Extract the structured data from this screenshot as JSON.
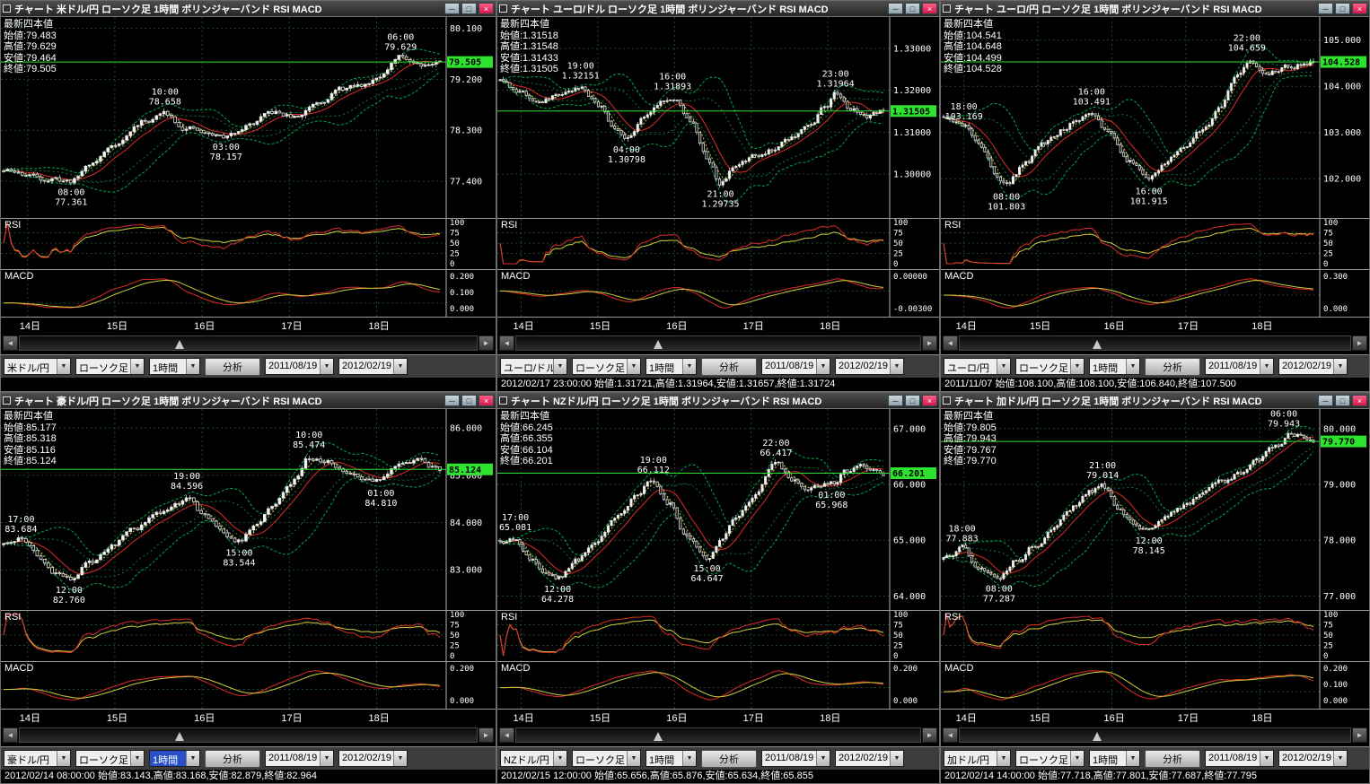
{
  "common": {
    "quote_header": "最新四本値",
    "rsi_label": "RSI",
    "macd_label": "MACD",
    "rsi_ticks": [
      "100",
      "75",
      "50",
      "25",
      "0"
    ],
    "dates": [
      "14日",
      "15日",
      "16日",
      "17日",
      "18日"
    ],
    "window_buttons": {
      "minimize": "─",
      "maximize": "□",
      "close": "×"
    },
    "scrollbar": {
      "left": "◄",
      "right": "►"
    },
    "combo_arrow": "▼",
    "toolbar": {
      "candle_type": "ローソク足",
      "interval": "1時間",
      "analyze": "分析",
      "date_from": "2011/08/19",
      "date_to": "2012/02/19"
    },
    "colors": {
      "candle": "#f0f0f0",
      "band": "#00a850",
      "band_inner": "#0a7a40",
      "ma_fast": "#dd2a2a",
      "ma_slow": "#cfcf3a",
      "current": "#2ee32e",
      "grid": "#1d4a2c",
      "axis": "#b0b0b0"
    }
  },
  "panels": [
    {
      "pair": "米ドル/円",
      "title": "チャート 米ドル/円 ローソク足 1時間 ボリンジャーバンド RSI MACD",
      "quote_lines": [
        "始値:79.483",
        "高値:79.629",
        "安値:79.464",
        "終値:79.505"
      ],
      "current": "79.505",
      "current_value": 79.505,
      "y_ticks": [
        "80.100",
        "79.200",
        "78.300",
        "77.400"
      ],
      "y_range": [
        76.75,
        80.3
      ],
      "macd_ticks": [
        "0.200",
        "0.100",
        "0.000"
      ],
      "annotations": [
        {
          "t": 0.155,
          "price": 77.361,
          "time": "08:00",
          "value": "77.361",
          "pos": "below"
        },
        {
          "t": 0.37,
          "price": 78.658,
          "time": "10:00",
          "value": "78.658",
          "pos": "above"
        },
        {
          "t": 0.51,
          "price": 78.157,
          "time": "03:00",
          "value": "78.157",
          "pos": "below"
        },
        {
          "t": 0.91,
          "price": 79.629,
          "time": "06:00",
          "value": "79.629",
          "pos": "above"
        }
      ],
      "price_path": [
        [
          0,
          77.58
        ],
        [
          0.05,
          77.52
        ],
        [
          0.1,
          77.44
        ],
        [
          0.155,
          77.4
        ],
        [
          0.2,
          77.72
        ],
        [
          0.26,
          78.08
        ],
        [
          0.32,
          78.45
        ],
        [
          0.37,
          78.6
        ],
        [
          0.42,
          78.34
        ],
        [
          0.47,
          78.22
        ],
        [
          0.51,
          78.18
        ],
        [
          0.56,
          78.4
        ],
        [
          0.62,
          78.6
        ],
        [
          0.67,
          78.52
        ],
        [
          0.72,
          78.82
        ],
        [
          0.77,
          79.02
        ],
        [
          0.82,
          79.08
        ],
        [
          0.87,
          79.32
        ],
        [
          0.91,
          79.58
        ],
        [
          0.96,
          79.48
        ],
        [
          1,
          79.51
        ]
      ],
      "seed": 11,
      "status": null,
      "interval_selected": false
    },
    {
      "pair": "ユーロ/ドル",
      "title": "チャート ユーロ/ドル ローソク足 1時間 ボリンジャーバンド RSI MACD",
      "quote_lines": [
        "始値:1.31518",
        "高値:1.31548",
        "安値:1.31433",
        "終値:1.31505"
      ],
      "current": "1.31505",
      "current_value": 1.31505,
      "y_ticks": [
        "1.33000",
        "1.32000",
        "1.31000",
        "1.30000"
      ],
      "y_range": [
        1.2895,
        1.3375
      ],
      "macd_ticks": [
        "0.00000",
        "-0.00300"
      ],
      "annotations": [
        {
          "t": 0.21,
          "price": 1.32151,
          "time": "19:00",
          "value": "1.32151",
          "pos": "above"
        },
        {
          "t": 0.33,
          "price": 1.30798,
          "time": "04:00",
          "value": "1.30798",
          "pos": "below"
        },
        {
          "t": 0.45,
          "price": 1.31893,
          "time": "16:00",
          "value": "1.31893",
          "pos": "above"
        },
        {
          "t": 0.575,
          "price": 1.29735,
          "time": "21:00",
          "value": "1.29735",
          "pos": "below"
        },
        {
          "t": 0.875,
          "price": 1.31964,
          "time": "23:00",
          "value": "1.31964",
          "pos": "above"
        }
      ],
      "price_path": [
        [
          0,
          1.3224
        ],
        [
          0.05,
          1.3198
        ],
        [
          0.1,
          1.3178
        ],
        [
          0.15,
          1.3188
        ],
        [
          0.21,
          1.3212
        ],
        [
          0.26,
          1.3158
        ],
        [
          0.3,
          1.3108
        ],
        [
          0.33,
          1.3084
        ],
        [
          0.38,
          1.3138
        ],
        [
          0.43,
          1.3178
        ],
        [
          0.45,
          1.3186
        ],
        [
          0.5,
          1.3128
        ],
        [
          0.54,
          1.3042
        ],
        [
          0.575,
          1.2978
        ],
        [
          0.61,
          1.3012
        ],
        [
          0.66,
          1.3044
        ],
        [
          0.71,
          1.3062
        ],
        [
          0.76,
          1.3088
        ],
        [
          0.81,
          1.3122
        ],
        [
          0.85,
          1.3162
        ],
        [
          0.875,
          1.3192
        ],
        [
          0.92,
          1.3152
        ],
        [
          0.96,
          1.3138
        ],
        [
          1,
          1.315
        ]
      ],
      "seed": 22,
      "status": "2012/02/17 23:00:00 始値:1.31721,高値:1.31964,安値:1.31657,終値:1.31724",
      "interval_selected": false
    },
    {
      "pair": "ユーロ/円",
      "title": "チャート ユーロ/円 ローソク足 1時間 ボリンジャーバンド RSI MACD",
      "quote_lines": [
        "始値:104.541",
        "高値:104.648",
        "安値:104.499",
        "終値:104.528"
      ],
      "current": "104.528",
      "current_value": 104.528,
      "y_ticks": [
        "105.000",
        "104.000",
        "103.000",
        "102.000"
      ],
      "y_range": [
        101.15,
        105.5
      ],
      "macd_ticks": [
        "0.300",
        "0.000"
      ],
      "annotations": [
        {
          "t": 0.055,
          "price": 103.169,
          "time": "18:00",
          "value": "103.169",
          "pos": "above"
        },
        {
          "t": 0.17,
          "price": 101.803,
          "time": "08:00",
          "value": "101.803",
          "pos": "below"
        },
        {
          "t": 0.4,
          "price": 103.491,
          "time": "16:00",
          "value": "103.491",
          "pos": "above"
        },
        {
          "t": 0.555,
          "price": 101.915,
          "time": "16:00",
          "value": "101.915",
          "pos": "below"
        },
        {
          "t": 0.82,
          "price": 104.659,
          "time": "22:00",
          "value": "104.659",
          "pos": "above"
        }
      ],
      "price_path": [
        [
          0,
          103.32
        ],
        [
          0.055,
          103.15
        ],
        [
          0.1,
          102.7
        ],
        [
          0.14,
          102.1
        ],
        [
          0.17,
          101.88
        ],
        [
          0.22,
          102.32
        ],
        [
          0.27,
          102.75
        ],
        [
          0.32,
          103.05
        ],
        [
          0.36,
          103.28
        ],
        [
          0.4,
          103.45
        ],
        [
          0.45,
          102.95
        ],
        [
          0.5,
          102.4
        ],
        [
          0.555,
          101.98
        ],
        [
          0.6,
          102.35
        ],
        [
          0.65,
          102.65
        ],
        [
          0.7,
          103.05
        ],
        [
          0.75,
          103.55
        ],
        [
          0.79,
          104.15
        ],
        [
          0.83,
          104.58
        ],
        [
          0.87,
          104.25
        ],
        [
          0.93,
          104.42
        ],
        [
          1,
          104.53
        ]
      ],
      "seed": 33,
      "status": "2011/11/07 始値:108.100,高値:108.100,安値:106.840,終値:107.500",
      "interval_selected": false
    },
    {
      "pair": "豪ドル/円",
      "title": "チャート 豪ドル/円 ローソク足 1時間 ボリンジャーバンド RSI MACD",
      "quote_lines": [
        "始値:85.177",
        "高値:85.318",
        "安値:85.116",
        "終値:85.124"
      ],
      "current": "85.124",
      "current_value": 85.124,
      "y_ticks": [
        "86.000",
        "85.000",
        "84.000",
        "83.000"
      ],
      "y_range": [
        82.15,
        86.4
      ],
      "macd_ticks": [
        "0.200",
        "0.000"
      ],
      "annotations": [
        {
          "t": 0.04,
          "price": 83.684,
          "time": "17:00",
          "value": "83.684",
          "pos": "above"
        },
        {
          "t": 0.15,
          "price": 82.76,
          "time": "12:00",
          "value": "82.760",
          "pos": "below"
        },
        {
          "t": 0.42,
          "price": 84.596,
          "time": "19:00",
          "value": "84.596",
          "pos": "above"
        },
        {
          "t": 0.54,
          "price": 83.544,
          "time": "15:00",
          "value": "83.544",
          "pos": "below"
        },
        {
          "t": 0.7,
          "price": 85.474,
          "time": "10:00",
          "value": "85.474",
          "pos": "above"
        },
        {
          "t": 0.865,
          "price": 84.81,
          "time": "01:00",
          "value": "84.810",
          "pos": "below"
        }
      ],
      "price_path": [
        [
          0,
          83.52
        ],
        [
          0.04,
          83.66
        ],
        [
          0.08,
          83.25
        ],
        [
          0.12,
          82.95
        ],
        [
          0.15,
          82.82
        ],
        [
          0.2,
          83.15
        ],
        [
          0.25,
          83.52
        ],
        [
          0.3,
          83.85
        ],
        [
          0.35,
          84.18
        ],
        [
          0.4,
          84.45
        ],
        [
          0.42,
          84.55
        ],
        [
          0.46,
          84.15
        ],
        [
          0.5,
          83.8
        ],
        [
          0.54,
          83.6
        ],
        [
          0.58,
          83.95
        ],
        [
          0.62,
          84.38
        ],
        [
          0.66,
          84.85
        ],
        [
          0.7,
          85.38
        ],
        [
          0.74,
          85.28
        ],
        [
          0.78,
          85.05
        ],
        [
          0.82,
          84.95
        ],
        [
          0.865,
          84.88
        ],
        [
          0.9,
          85.18
        ],
        [
          0.95,
          85.28
        ],
        [
          1,
          85.12
        ]
      ],
      "seed": 44,
      "status": "2012/02/14 08:00:00 始値:83.143,高値:83.168,安値:82.879,終値:82.964",
      "interval_selected": true
    },
    {
      "pair": "NZドル/円",
      "title": "チャート NZドル/円 ローソク足 1時間 ボリンジャーバンド RSI MACD",
      "quote_lines": [
        "始値:66.245",
        "高値:66.355",
        "安値:66.104",
        "終値:66.201"
      ],
      "current": "66.201",
      "current_value": 66.201,
      "y_ticks": [
        "67.000",
        "66.000",
        "65.000",
        "64.000"
      ],
      "y_range": [
        63.75,
        67.35
      ],
      "macd_ticks": [
        "0.200",
        "0.000"
      ],
      "annotations": [
        {
          "t": 0.04,
          "price": 65.081,
          "time": "17:00",
          "value": "65.081",
          "pos": "above"
        },
        {
          "t": 0.15,
          "price": 64.278,
          "time": "12:00",
          "value": "64.278",
          "pos": "below"
        },
        {
          "t": 0.4,
          "price": 66.112,
          "time": "19:00",
          "value": "66.112",
          "pos": "above"
        },
        {
          "t": 0.54,
          "price": 64.647,
          "time": "15:00",
          "value": "64.647",
          "pos": "below"
        },
        {
          "t": 0.72,
          "price": 66.417,
          "time": "22:00",
          "value": "66.417",
          "pos": "above"
        },
        {
          "t": 0.865,
          "price": 65.968,
          "time": "01:00",
          "value": "65.968",
          "pos": "below"
        }
      ],
      "price_path": [
        [
          0,
          64.98
        ],
        [
          0.04,
          65.06
        ],
        [
          0.08,
          64.68
        ],
        [
          0.12,
          64.42
        ],
        [
          0.15,
          64.3
        ],
        [
          0.2,
          64.65
        ],
        [
          0.25,
          65.0
        ],
        [
          0.3,
          65.38
        ],
        [
          0.35,
          65.78
        ],
        [
          0.4,
          66.08
        ],
        [
          0.44,
          65.68
        ],
        [
          0.48,
          65.1
        ],
        [
          0.54,
          64.7
        ],
        [
          0.58,
          65.08
        ],
        [
          0.62,
          65.42
        ],
        [
          0.67,
          65.88
        ],
        [
          0.72,
          66.38
        ],
        [
          0.76,
          66.08
        ],
        [
          0.8,
          65.95
        ],
        [
          0.865,
          66.0
        ],
        [
          0.9,
          66.22
        ],
        [
          0.95,
          66.32
        ],
        [
          1,
          66.2
        ]
      ],
      "seed": 55,
      "status": "2012/02/15 12:00:00 始値:65.656,高値:65.876,安値:65.634,終値:65.855",
      "interval_selected": false
    },
    {
      "pair": "加ドル/円",
      "title": "チャート 加ドル/円 ローソク足 1時間 ボリンジャーバンド RSI MACD",
      "quote_lines": [
        "始値:79.805",
        "高値:79.943",
        "安値:79.767",
        "終値:79.770"
      ],
      "current": "79.770",
      "current_value": 79.77,
      "y_ticks": [
        "80.000",
        "79.000",
        "78.000",
        "77.000"
      ],
      "y_range": [
        76.75,
        80.35
      ],
      "macd_ticks": [
        "0.200",
        "0.100",
        "0.000"
      ],
      "annotations": [
        {
          "t": 0.05,
          "price": 77.883,
          "time": "18:00",
          "value": "77.883",
          "pos": "above"
        },
        {
          "t": 0.15,
          "price": 77.287,
          "time": "08:00",
          "value": "77.287",
          "pos": "below"
        },
        {
          "t": 0.43,
          "price": 79.014,
          "time": "21:00",
          "value": "79.014",
          "pos": "above"
        },
        {
          "t": 0.555,
          "price": 78.145,
          "time": "12:00",
          "value": "78.145",
          "pos": "below"
        },
        {
          "t": 0.92,
          "price": 79.943,
          "time": "06:00",
          "value": "79.943",
          "pos": "above"
        }
      ],
      "price_path": [
        [
          0,
          77.72
        ],
        [
          0.05,
          77.86
        ],
        [
          0.09,
          77.55
        ],
        [
          0.12,
          77.38
        ],
        [
          0.15,
          77.32
        ],
        [
          0.2,
          77.65
        ],
        [
          0.25,
          77.95
        ],
        [
          0.3,
          78.28
        ],
        [
          0.35,
          78.6
        ],
        [
          0.4,
          78.88
        ],
        [
          0.43,
          78.98
        ],
        [
          0.47,
          78.6
        ],
        [
          0.51,
          78.32
        ],
        [
          0.555,
          78.18
        ],
        [
          0.6,
          78.45
        ],
        [
          0.65,
          78.62
        ],
        [
          0.7,
          78.82
        ],
        [
          0.75,
          79.02
        ],
        [
          0.8,
          79.22
        ],
        [
          0.85,
          79.42
        ],
        [
          0.9,
          79.68
        ],
        [
          0.94,
          79.9
        ],
        [
          1,
          79.78
        ]
      ],
      "seed": 66,
      "status": "2012/02/14 14:00:00 始値:77.718,高値:77.801,安値:77.687,終値:77.795",
      "interval_selected": false
    }
  ]
}
